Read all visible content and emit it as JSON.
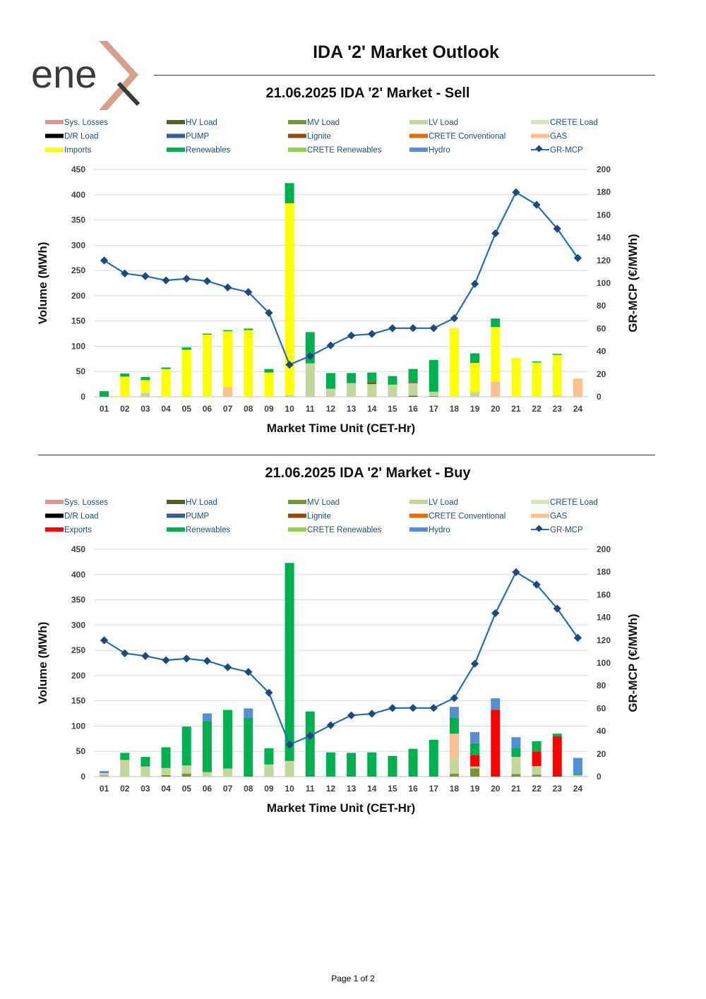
{
  "page": {
    "title": "IDA '2' Market Outlook",
    "footer": "Page 1 of 2",
    "logo_text": "ene"
  },
  "colors": {
    "Sys. Losses": "#d99694",
    "HV Load": "#4f6228",
    "MV Load": "#77933c",
    "LV Load": "#c3d69b",
    "CRETE Load": "#d7e4bd",
    "D/R Load": "#000000",
    "PUMP": "#376092",
    "Lignite": "#984807",
    "CRETE Conventional": "#e46c0a",
    "GAS": "#fac090",
    "Imports": "#ffff00",
    "Exports": "#ff0000",
    "Renewables": "#00b050",
    "CRETE Renewables": "#92d050",
    "Hydro": "#558ed5",
    "GR-MCP": "#1f6fb7",
    "marker": "#1f497d",
    "logo_accent": "#d4a088"
  },
  "chart_data": [
    {
      "type": "bar",
      "title": "21.06.2025  IDA '2' Market - Sell",
      "xlabel": "Market Time Unit (CET-Hr)",
      "ylabel": "Volume (MWh)",
      "y2label": "GR-MCP (€/MWh)",
      "ylim": [
        0,
        450
      ],
      "y2lim": [
        0,
        200
      ],
      "yticks": [
        0,
        50,
        100,
        150,
        200,
        250,
        300,
        350,
        400,
        450
      ],
      "y2ticks": [
        0,
        20,
        40,
        60,
        80,
        100,
        120,
        140,
        160,
        180,
        200
      ],
      "categories": [
        "01",
        "02",
        "03",
        "04",
        "05",
        "06",
        "07",
        "08",
        "09",
        "10",
        "11",
        "12",
        "13",
        "14",
        "15",
        "16",
        "17",
        "18",
        "19",
        "20",
        "21",
        "22",
        "23",
        "24"
      ],
      "legend": [
        "Sys. Losses",
        "HV Load",
        "MV Load",
        "LV Load",
        "CRETE Load",
        "D/R Load",
        "PUMP",
        "Lignite",
        "CRETE Conventional",
        "GAS",
        "Imports",
        "Renewables",
        "CRETE Renewables",
        "Hydro",
        "GR-MCP"
      ],
      "grid": true,
      "stacked": true,
      "series": [
        {
          "name": "HV Load",
          "values": [
            0,
            0,
            0,
            0,
            0,
            0,
            0,
            0,
            0,
            0,
            0,
            0,
            0,
            0,
            0,
            2,
            1,
            0,
            0,
            0,
            0,
            0,
            0,
            0
          ]
        },
        {
          "name": "MV Load",
          "values": [
            0,
            0,
            0,
            0,
            0,
            0,
            0,
            0,
            0,
            0,
            0,
            0,
            0,
            0,
            0,
            0,
            0,
            0,
            0,
            0,
            0,
            0,
            0,
            0
          ]
        },
        {
          "name": "LV Load",
          "values": [
            0,
            0,
            8,
            0,
            0,
            0,
            0,
            0,
            0,
            3,
            66,
            16,
            27,
            25,
            24,
            25,
            9,
            0,
            9,
            0,
            0,
            0,
            0,
            0
          ]
        },
        {
          "name": "Lignite",
          "values": [
            0,
            0,
            0,
            0,
            0,
            0,
            0,
            0,
            0,
            0,
            0,
            0,
            0,
            4,
            0,
            2,
            0,
            0,
            0,
            0,
            0,
            0,
            0,
            0
          ]
        },
        {
          "name": "GAS",
          "values": [
            0,
            0,
            0,
            0,
            0,
            0,
            19,
            0,
            0,
            0,
            0,
            0,
            0,
            0,
            0,
            0,
            0,
            0,
            0,
            30,
            0,
            0,
            2,
            36
          ]
        },
        {
          "name": "Imports",
          "values": [
            0,
            40,
            25,
            55,
            93,
            123,
            111,
            132,
            48,
            380,
            0,
            0,
            0,
            0,
            0,
            0,
            0,
            136,
            58,
            108,
            77,
            68,
            81,
            0
          ]
        },
        {
          "name": "Renewables",
          "values": [
            11,
            6,
            6,
            3,
            5,
            2,
            2,
            3,
            7,
            40,
            62,
            31,
            20,
            19,
            17,
            26,
            63,
            0,
            19,
            17,
            0,
            2,
            2,
            0
          ]
        }
      ],
      "line": {
        "name": "GR-MCP",
        "values": [
          119.9,
          108.5,
          106.1,
          102.4,
          103.9,
          101.8,
          96.2,
          92.1,
          73.8,
          28.2,
          35.9,
          45.2,
          53.9,
          55.3,
          60.3,
          60.4,
          60.4,
          69.1,
          99.3,
          143.8,
          179.9,
          168.9,
          147.8,
          122.1
        ]
      }
    },
    {
      "type": "bar",
      "title": "21.06.2025  IDA '2' Market - Buy",
      "xlabel": "Market Time Unit (CET-Hr)",
      "ylabel": "Volume (MWh)",
      "y2label": "GR-MCP (€/MWh)",
      "ylim": [
        0,
        450
      ],
      "y2lim": [
        0,
        200
      ],
      "yticks": [
        0,
        50,
        100,
        150,
        200,
        250,
        300,
        350,
        400,
        450
      ],
      "y2ticks": [
        0,
        20,
        40,
        60,
        80,
        100,
        120,
        140,
        160,
        180,
        200
      ],
      "categories": [
        "01",
        "02",
        "03",
        "04",
        "05",
        "06",
        "07",
        "08",
        "09",
        "10",
        "11",
        "12",
        "13",
        "14",
        "15",
        "16",
        "17",
        "18",
        "19",
        "20",
        "21",
        "22",
        "23",
        "24"
      ],
      "legend": [
        "Sys. Losses",
        "HV Load",
        "MV Load",
        "LV Load",
        "CRETE Load",
        "D/R Load",
        "PUMP",
        "Lignite",
        "CRETE Conventional",
        "GAS",
        "Exports",
        "Renewables",
        "CRETE Renewables",
        "Hydro",
        "GR-MCP"
      ],
      "grid": true,
      "stacked": true,
      "series": [
        {
          "name": "Sys. Losses",
          "values": [
            3,
            0,
            0,
            0,
            0,
            0,
            0,
            0,
            0,
            0,
            0,
            0,
            0,
            0,
            0,
            0,
            0,
            0,
            0,
            0,
            0,
            0,
            0,
            0
          ]
        },
        {
          "name": "HV Load",
          "values": [
            0,
            0,
            0,
            0,
            0,
            0,
            0,
            0,
            0,
            0,
            0,
            0,
            0,
            0,
            0,
            0,
            0,
            0,
            0,
            0,
            0,
            0,
            0,
            0
          ]
        },
        {
          "name": "MV Load",
          "values": [
            0,
            0,
            0,
            3,
            6,
            0,
            0,
            0,
            0,
            0,
            0,
            0,
            0,
            0,
            0,
            0,
            0,
            6,
            16,
            0,
            5,
            4,
            0,
            0
          ]
        },
        {
          "name": "LV Load",
          "values": [
            4,
            33,
            20,
            14,
            16,
            9,
            16,
            0,
            24,
            31,
            0,
            0,
            0,
            0,
            0,
            0,
            0,
            30,
            4,
            0,
            34,
            17,
            0,
            3
          ]
        },
        {
          "name": "GAS",
          "values": [
            0,
            0,
            0,
            0,
            0,
            0,
            0,
            0,
            0,
            0,
            0,
            0,
            0,
            0,
            0,
            0,
            0,
            49,
            0,
            0,
            0,
            0,
            0,
            0
          ]
        },
        {
          "name": "Exports",
          "values": [
            0,
            0,
            0,
            0,
            0,
            0,
            0,
            0,
            0,
            0,
            0,
            0,
            0,
            0,
            0,
            0,
            0,
            0,
            23,
            132,
            0,
            29,
            80,
            0
          ]
        },
        {
          "name": "Renewables",
          "values": [
            0,
            14,
            19,
            41,
            77,
            100,
            116,
            116,
            32,
            392,
            129,
            48,
            47,
            48,
            41,
            55,
            73,
            32,
            23,
            0,
            18,
            20,
            5,
            2
          ]
        },
        {
          "name": "Hydro",
          "values": [
            4,
            0,
            0,
            0,
            0,
            16,
            0,
            19,
            0,
            0,
            0,
            0,
            0,
            0,
            0,
            0,
            0,
            21,
            22,
            23,
            21,
            0,
            0,
            32
          ]
        }
      ],
      "line": {
        "name": "GR-MCP",
        "values": [
          119.9,
          108.5,
          106.1,
          102.4,
          103.9,
          101.8,
          96.2,
          92.1,
          73.8,
          28.2,
          35.9,
          45.2,
          53.9,
          55.3,
          60.3,
          60.4,
          60.4,
          69.1,
          99.3,
          143.8,
          179.9,
          168.9,
          147.8,
          122.1
        ]
      }
    }
  ]
}
